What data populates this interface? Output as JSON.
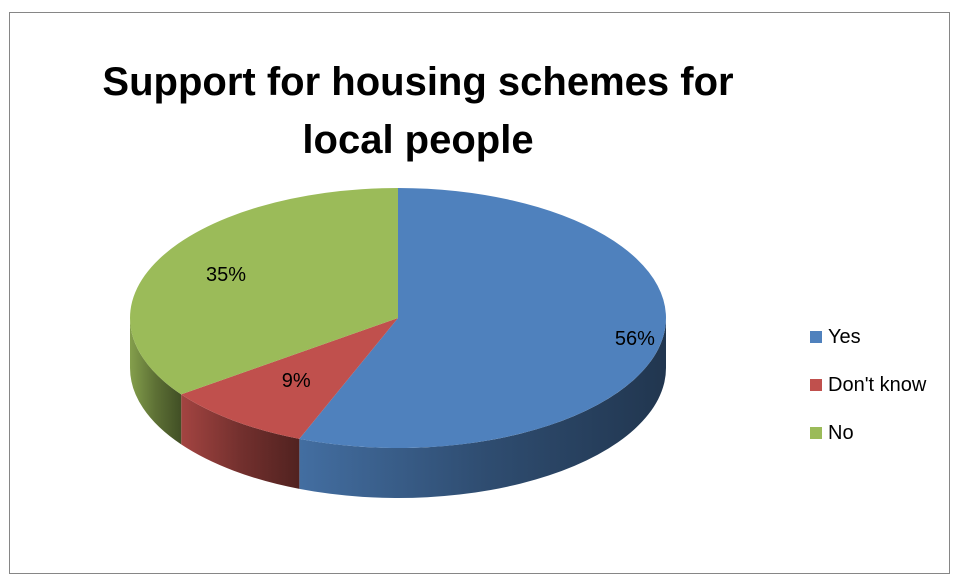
{
  "chart_data": {
    "type": "pie",
    "title": "Support for housing schemes for local people",
    "title_lines": [
      "Support for housing schemes for",
      "local people"
    ],
    "categories": [
      "Yes",
      "Don't know",
      "No"
    ],
    "values": [
      56,
      9,
      35
    ],
    "data_labels": [
      "56%",
      "9%",
      "35%"
    ],
    "colors": [
      "#4F81BD",
      "#C0504D",
      "#9BBB59"
    ],
    "legend_position": "right",
    "style": "3d-pie"
  }
}
